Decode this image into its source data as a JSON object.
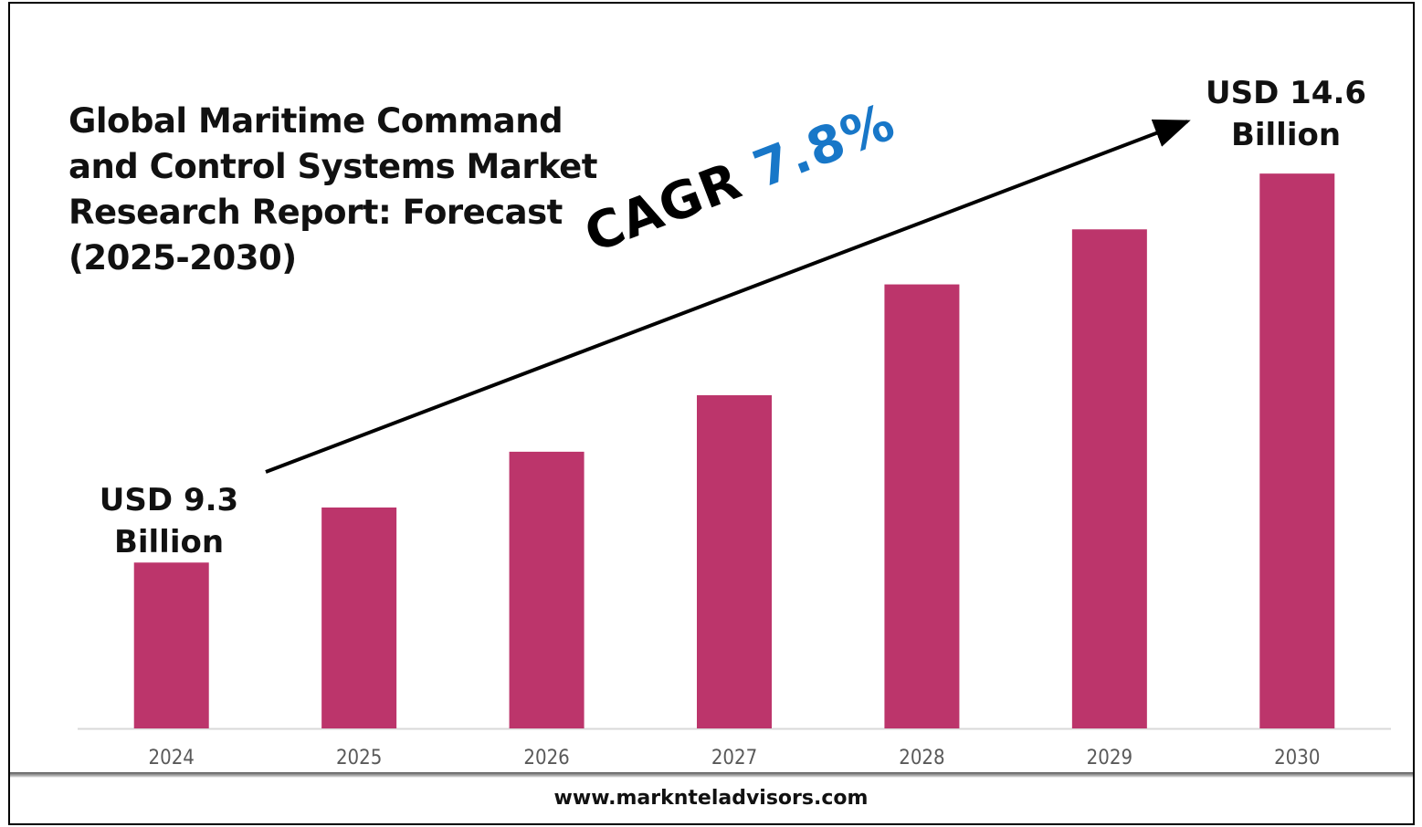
{
  "chart_data": {
    "type": "bar",
    "title": "Global Maritime Command and Control Systems Market Research Report: Forecast (2025-2030)",
    "categories": [
      "2024",
      "2025",
      "2026",
      "2027",
      "2028",
      "2029",
      "2030"
    ],
    "values": [
      9.3,
      10.05,
      10.81,
      11.58,
      13.09,
      13.84,
      14.6
    ],
    "unit": "USD Billion",
    "ylim": [
      7.04,
      15.0
    ],
    "grid": false,
    "bar_color": "#bc356b",
    "annotations": {
      "start_label_line1": "USD 9.3",
      "start_label_line2": "Billion",
      "end_label_line1": "USD 14.6",
      "end_label_line2": "Billion",
      "cagr_prefix": "CAGR",
      "cagr_value": "7.8%"
    },
    "cagr_color": "#1877c8"
  },
  "footer": {
    "website": "www.marknteladvisors.com"
  }
}
